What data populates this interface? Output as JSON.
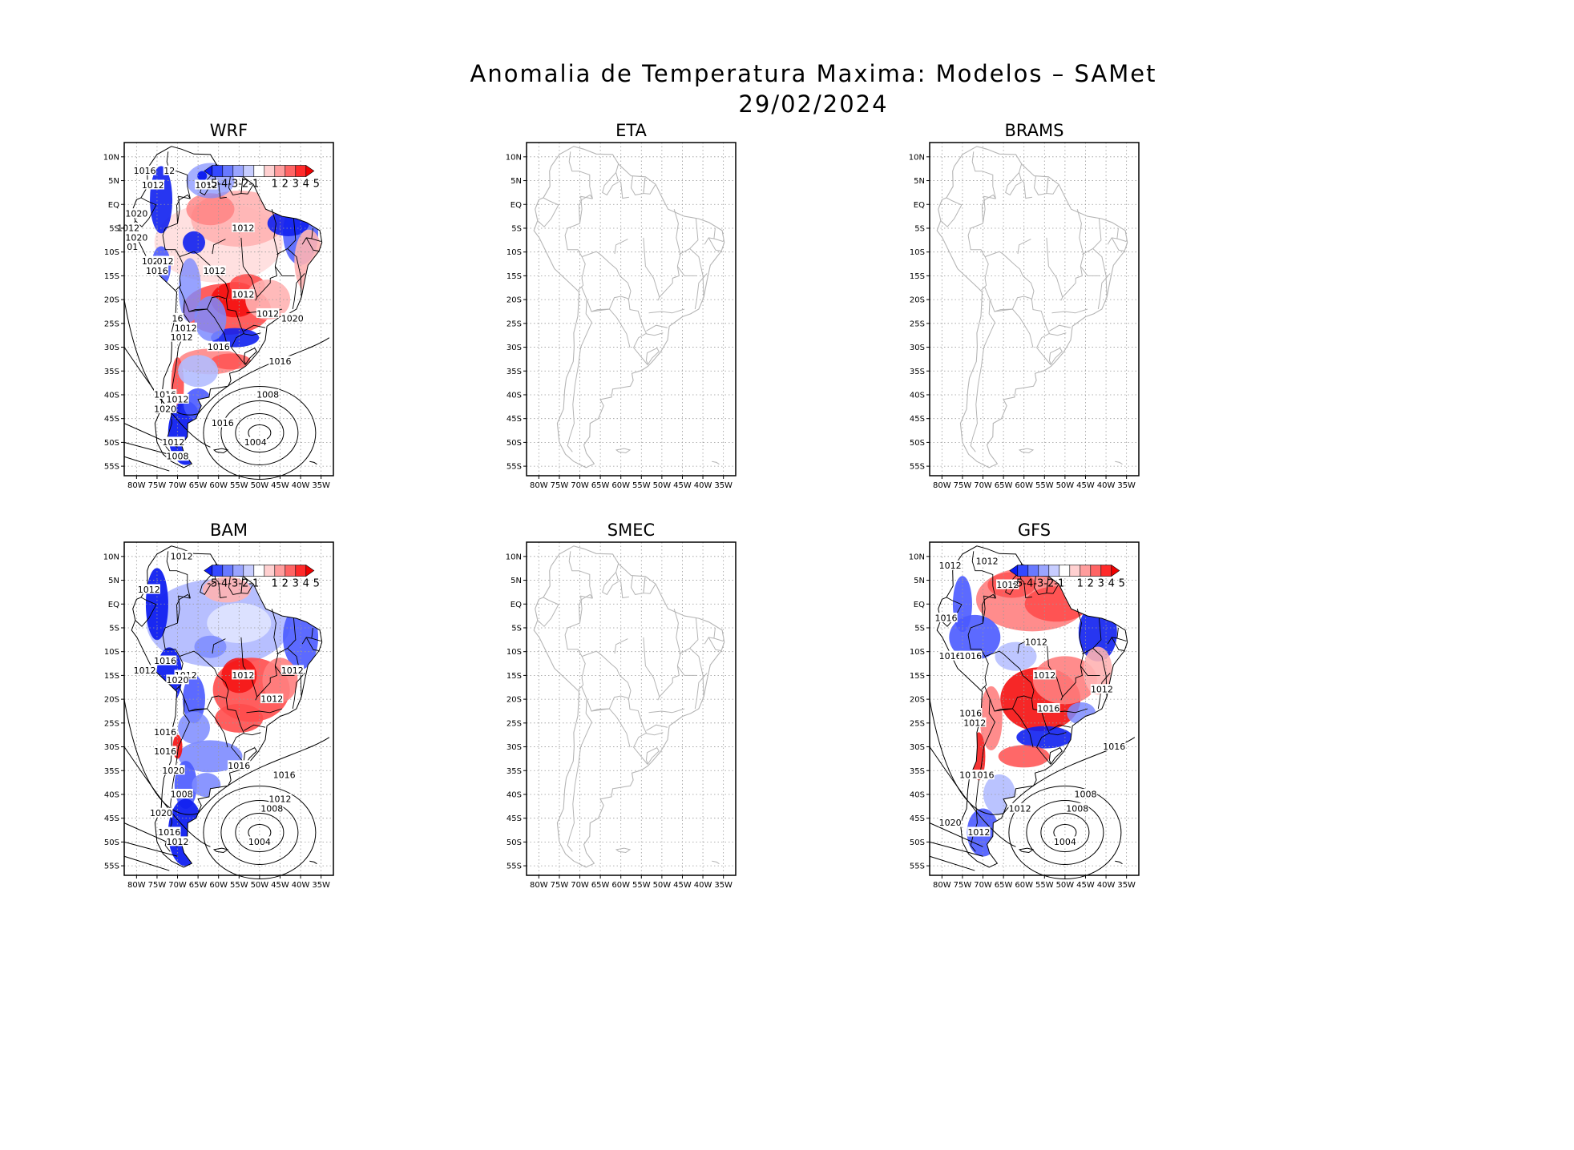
{
  "figure": {
    "title": "Anomalia de Temperatura Maxima: Modelos – SAMet",
    "date": "29/02/2024"
  },
  "axes": {
    "lat_labels": [
      "10N",
      "5N",
      "EQ",
      "5S",
      "10S",
      "15S",
      "20S",
      "25S",
      "30S",
      "35S",
      "40S",
      "45S",
      "50S",
      "55S"
    ],
    "lon_labels": [
      "80W",
      "75W",
      "70W",
      "65W",
      "60W",
      "55W",
      "50W",
      "45W",
      "40W",
      "35W"
    ]
  },
  "colorbar": {
    "labels": [
      "-5",
      "-4",
      "-3",
      "-2",
      "-1",
      "1",
      "2",
      "3",
      "4",
      "5"
    ],
    "colors": [
      "#0b1bf5",
      "#3348ff",
      "#6879ff",
      "#9aa5ff",
      "#c7cdff",
      "#ffffff",
      "#ffd0d0",
      "#ff9d9d",
      "#ff6464",
      "#ff2a2a",
      "#f00000"
    ]
  },
  "colors": {
    "warm": "#ff2a2a",
    "cold": "#1020f0",
    "land": "#b5b5b5",
    "grid": "#999999"
  },
  "panels": [
    {
      "id": "WRF",
      "title": "WRF",
      "has_data": true,
      "isobars": [
        "1016",
        "12",
        "1012",
        "1012",
        "1020",
        "1012",
        "1020",
        "01",
        "1020",
        "012",
        "1016",
        "1012",
        "1012",
        "1012",
        "1012",
        "1020",
        "16",
        "1012",
        "1012",
        "1016",
        "1016",
        "1016",
        "1012",
        "1008",
        "1016",
        "1004",
        "1020",
        "1012",
        "1008"
      ]
    },
    {
      "id": "ETA",
      "title": "ETA",
      "has_data": false,
      "isobars": []
    },
    {
      "id": "BRAMS",
      "title": "BRAMS",
      "has_data": false,
      "isobars": []
    },
    {
      "id": "BAM",
      "title": "BAM",
      "has_data": true,
      "isobars": [
        "1012",
        "1012",
        "1016",
        "1012",
        "1012",
        "1020",
        "1012",
        "1012",
        "1012",
        "1016",
        "1016",
        "1020",
        "1016",
        "1016",
        "1012",
        "1008",
        "1020",
        "1016",
        "1012",
        "1004",
        "1008"
      ]
    },
    {
      "id": "SMEC",
      "title": "SMEC",
      "has_data": false,
      "isobars": []
    },
    {
      "id": "GFS",
      "title": "GFS",
      "has_data": true,
      "isobars": [
        "1012",
        "1012",
        "1012",
        "1016",
        "1012",
        "1016",
        "1016",
        "1012",
        "1012",
        "1016",
        "1016",
        "1012",
        "1016",
        "1016",
        "1012",
        "1008",
        "1020",
        "1012",
        "1004",
        "1016",
        "1008"
      ]
    }
  ]
}
